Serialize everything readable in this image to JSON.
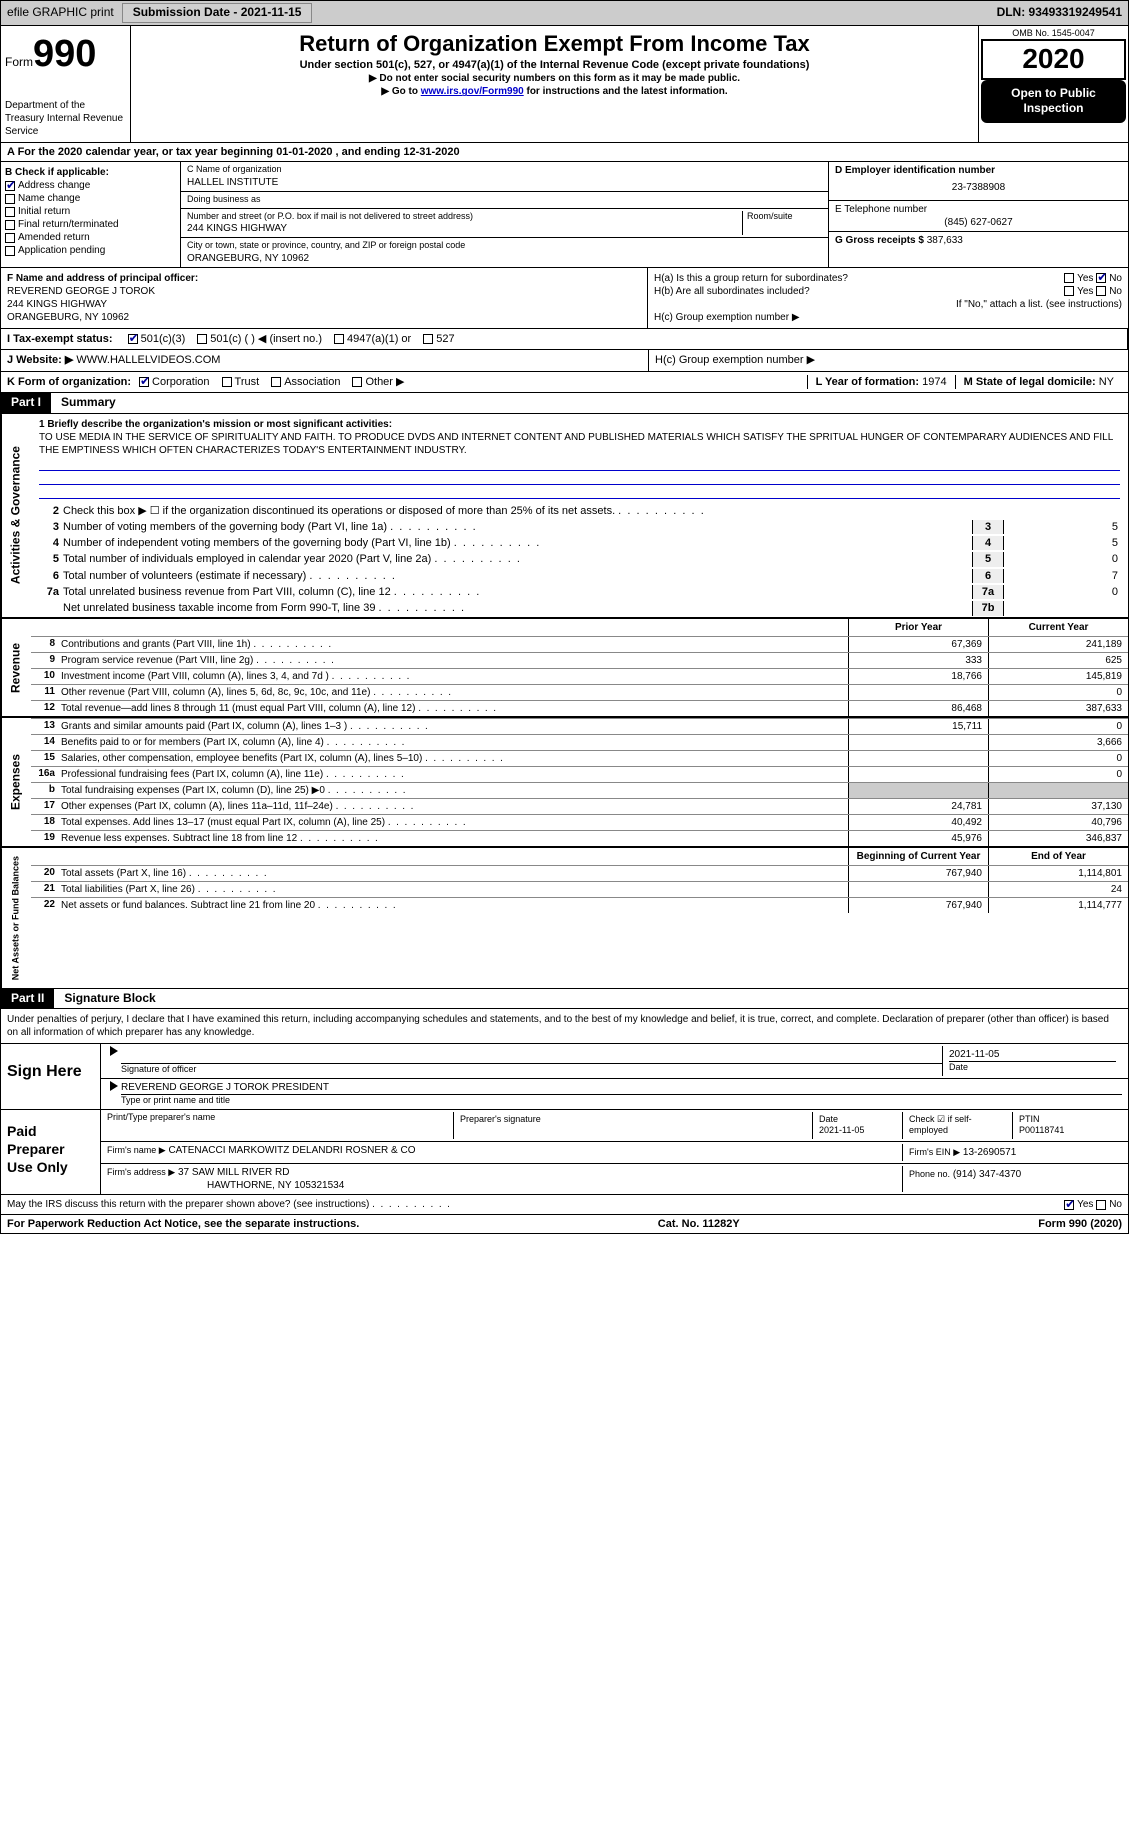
{
  "topbar": {
    "efile": "efile GRAPHIC print",
    "submission": "Submission Date - 2021-11-15",
    "dln": "DLN: 93493319249541"
  },
  "header": {
    "form_word": "Form",
    "form_no": "990",
    "dept": "Department of the Treasury\nInternal Revenue Service",
    "title": "Return of Organization Exempt From Income Tax",
    "subtitle": "Under section 501(c), 527, or 4947(a)(1) of the Internal Revenue Code (except private foundations)",
    "hint1": "▶ Do not enter social security numbers on this form as it may be made public.",
    "hint2_pre": "▶ Go to ",
    "hint2_link": "www.irs.gov/Form990",
    "hint2_post": " for instructions and the latest information.",
    "omb": "OMB No. 1545-0047",
    "year": "2020",
    "open_public": "Open to Public Inspection"
  },
  "taxyear": "A For the 2020 calendar year, or tax year beginning 01-01-2020   , and ending 12-31-2020",
  "boxB": {
    "title": "B Check if applicable:",
    "items": [
      {
        "label": "Address change",
        "checked": true
      },
      {
        "label": "Name change",
        "checked": false
      },
      {
        "label": "Initial return",
        "checked": false
      },
      {
        "label": "Final return/terminated",
        "checked": false
      },
      {
        "label": "Amended return",
        "checked": false
      },
      {
        "label": "Application pending",
        "checked": false
      }
    ]
  },
  "boxC": {
    "name_label": "C Name of organization",
    "name": "HALLEL INSTITUTE",
    "dba_label": "Doing business as",
    "dba": "",
    "addr_label": "Number and street (or P.O. box if mail is not delivered to street address)",
    "room_label": "Room/suite",
    "addr": "244 KINGS HIGHWAY",
    "city_label": "City or town, state or province, country, and ZIP or foreign postal code",
    "city": "ORANGEBURG, NY  10962"
  },
  "boxDE": {
    "d_label": "D Employer identification number",
    "d_val": "23-7388908",
    "e_label": "E Telephone number",
    "e_val": "(845) 627-0627",
    "g_label": "G Gross receipts $",
    "g_val": "387,633"
  },
  "boxF": {
    "label": "F  Name and address of principal officer:",
    "name": "REVEREND GEORGE J TOROK",
    "addr1": "244 KINGS HIGHWAY",
    "addr2": "ORANGEBURG, NY  10962"
  },
  "boxH": {
    "a": "H(a)  Is this a group return for subordinates?",
    "a_no": true,
    "b": "H(b)  Are all subordinates included?",
    "b_note": "If \"No,\" attach a list. (see instructions)",
    "c": "H(c)  Group exemption number ▶"
  },
  "boxI": {
    "label": "I  Tax-exempt status:",
    "opts": [
      "501(c)(3)",
      "501(c) (  ) ◀ (insert no.)",
      "4947(a)(1) or",
      "527"
    ],
    "checked_idx": 0
  },
  "boxJ": {
    "label": "J  Website: ▶",
    "val": "WWW.HALLELVIDEOS.COM"
  },
  "boxK": {
    "label": "K Form of organization:",
    "opts": [
      "Corporation",
      "Trust",
      "Association",
      "Other ▶"
    ],
    "checked_idx": 0
  },
  "boxL": {
    "label": "L Year of formation:",
    "val": "1974"
  },
  "boxM": {
    "label": "M State of legal domicile:",
    "val": "NY"
  },
  "partI": {
    "hdr": "Part I",
    "title": "Summary"
  },
  "mission": {
    "label": "1  Briefly describe the organization's mission or most significant activities:",
    "text": "TO USE MEDIA IN THE SERVICE OF SPIRITUALITY AND FAITH. TO PRODUCE DVDS AND INTERNET CONTENT AND PUBLISHED MATERIALS WHICH SATISFY THE SPRITUAL HUNGER OF CONTEMPARARY AUDIENCES AND FILL THE EMPTINESS WHICH OFTEN CHARACTERIZES TODAY'S ENTERTAINMENT INDUSTRY."
  },
  "gov_lines": [
    {
      "n": "2",
      "d": "Check this box ▶ ☐  if the organization discontinued its operations or disposed of more than 25% of its net assets.",
      "box": "",
      "v": ""
    },
    {
      "n": "3",
      "d": "Number of voting members of the governing body (Part VI, line 1a)",
      "box": "3",
      "v": "5"
    },
    {
      "n": "4",
      "d": "Number of independent voting members of the governing body (Part VI, line 1b)",
      "box": "4",
      "v": "5"
    },
    {
      "n": "5",
      "d": "Total number of individuals employed in calendar year 2020 (Part V, line 2a)",
      "box": "5",
      "v": "0"
    },
    {
      "n": "6",
      "d": "Total number of volunteers (estimate if necessary)",
      "box": "6",
      "v": "7"
    },
    {
      "n": "7a",
      "d": "Total unrelated business revenue from Part VIII, column (C), line 12",
      "box": "7a",
      "v": "0"
    },
    {
      "n": "",
      "d": "Net unrelated business taxable income from Form 990-T, line 39",
      "box": "7b",
      "v": ""
    }
  ],
  "tbl_hdr": {
    "c2": "Prior Year",
    "c3": "Current Year"
  },
  "rev_lines": [
    {
      "n": "8",
      "d": "Contributions and grants (Part VIII, line 1h)",
      "v1": "67,369",
      "v2": "241,189"
    },
    {
      "n": "9",
      "d": "Program service revenue (Part VIII, line 2g)",
      "v1": "333",
      "v2": "625"
    },
    {
      "n": "10",
      "d": "Investment income (Part VIII, column (A), lines 3, 4, and 7d )",
      "v1": "18,766",
      "v2": "145,819"
    },
    {
      "n": "11",
      "d": "Other revenue (Part VIII, column (A), lines 5, 6d, 8c, 9c, 10c, and 11e)",
      "v1": "",
      "v2": "0"
    },
    {
      "n": "12",
      "d": "Total revenue—add lines 8 through 11 (must equal Part VIII, column (A), line 12)",
      "v1": "86,468",
      "v2": "387,633"
    }
  ],
  "exp_lines": [
    {
      "n": "13",
      "d": "Grants and similar amounts paid (Part IX, column (A), lines 1–3 )",
      "v1": "15,711",
      "v2": "0"
    },
    {
      "n": "14",
      "d": "Benefits paid to or for members (Part IX, column (A), line 4)",
      "v1": "",
      "v2": "3,666"
    },
    {
      "n": "15",
      "d": "Salaries, other compensation, employee benefits (Part IX, column (A), lines 5–10)",
      "v1": "",
      "v2": "0"
    },
    {
      "n": "16a",
      "d": "Professional fundraising fees (Part IX, column (A), line 11e)",
      "v1": "",
      "v2": "0"
    },
    {
      "n": "b",
      "d": "Total fundraising expenses (Part IX, column (D), line 25) ▶0",
      "v1": "",
      "v2": "",
      "shade": true
    },
    {
      "n": "17",
      "d": "Other expenses (Part IX, column (A), lines 11a–11d, 11f–24e)",
      "v1": "24,781",
      "v2": "37,130"
    },
    {
      "n": "18",
      "d": "Total expenses. Add lines 13–17 (must equal Part IX, column (A), line 25)",
      "v1": "40,492",
      "v2": "40,796"
    },
    {
      "n": "19",
      "d": "Revenue less expenses. Subtract line 18 from line 12",
      "v1": "45,976",
      "v2": "346,837"
    }
  ],
  "net_hdr": {
    "c2": "Beginning of Current Year",
    "c3": "End of Year"
  },
  "net_lines": [
    {
      "n": "20",
      "d": "Total assets (Part X, line 16)",
      "v1": "767,940",
      "v2": "1,114,801"
    },
    {
      "n": "21",
      "d": "Total liabilities (Part X, line 26)",
      "v1": "",
      "v2": "24"
    },
    {
      "n": "22",
      "d": "Net assets or fund balances. Subtract line 21 from line 20",
      "v1": "767,940",
      "v2": "1,114,777"
    }
  ],
  "partII": {
    "hdr": "Part II",
    "title": "Signature Block"
  },
  "penalties": "Under penalties of perjury, I declare that I have examined this return, including accompanying schedules and statements, and to the best of my knowledge and belief, it is true, correct, and complete. Declaration of preparer (other than officer) is based on all information of which preparer has any knowledge.",
  "sign": {
    "here": "Sign Here",
    "sig_label": "Signature of officer",
    "date": "2021-11-05",
    "date_label": "Date",
    "name": "REVEREND GEORGE J TOROK  PRESIDENT",
    "name_label": "Type or print name and title"
  },
  "preparer": {
    "label": "Paid Preparer Use Only",
    "r1": {
      "c1": "Print/Type preparer's name",
      "c2": "Preparer's signature",
      "c3": "Date",
      "c3v": "2021-11-05",
      "c4": "Check ☑ if self-employed",
      "c5": "PTIN",
      "c5v": "P00118741"
    },
    "r2": {
      "label": "Firm's name    ▶",
      "val": "CATENACCI MARKOWITZ DELANDRI ROSNER & CO",
      "ein_label": "Firm's EIN ▶",
      "ein": "13-2690571"
    },
    "r3": {
      "label": "Firm's address ▶",
      "val": "37 SAW MILL RIVER RD",
      "city": "HAWTHORNE, NY  105321534",
      "ph_label": "Phone no.",
      "ph": "(914) 347-4370"
    }
  },
  "discuss": {
    "q": "May the IRS discuss this return with the preparer shown above? (see instructions)",
    "yes": true
  },
  "footer": {
    "left": "For Paperwork Reduction Act Notice, see the separate instructions.",
    "center": "Cat. No. 11282Y",
    "right": "Form 990 (2020)"
  },
  "vert_labels": {
    "gov": "Activities & Governance",
    "rev": "Revenue",
    "exp": "Expenses",
    "net": "Net Assets or Fund Balances"
  }
}
